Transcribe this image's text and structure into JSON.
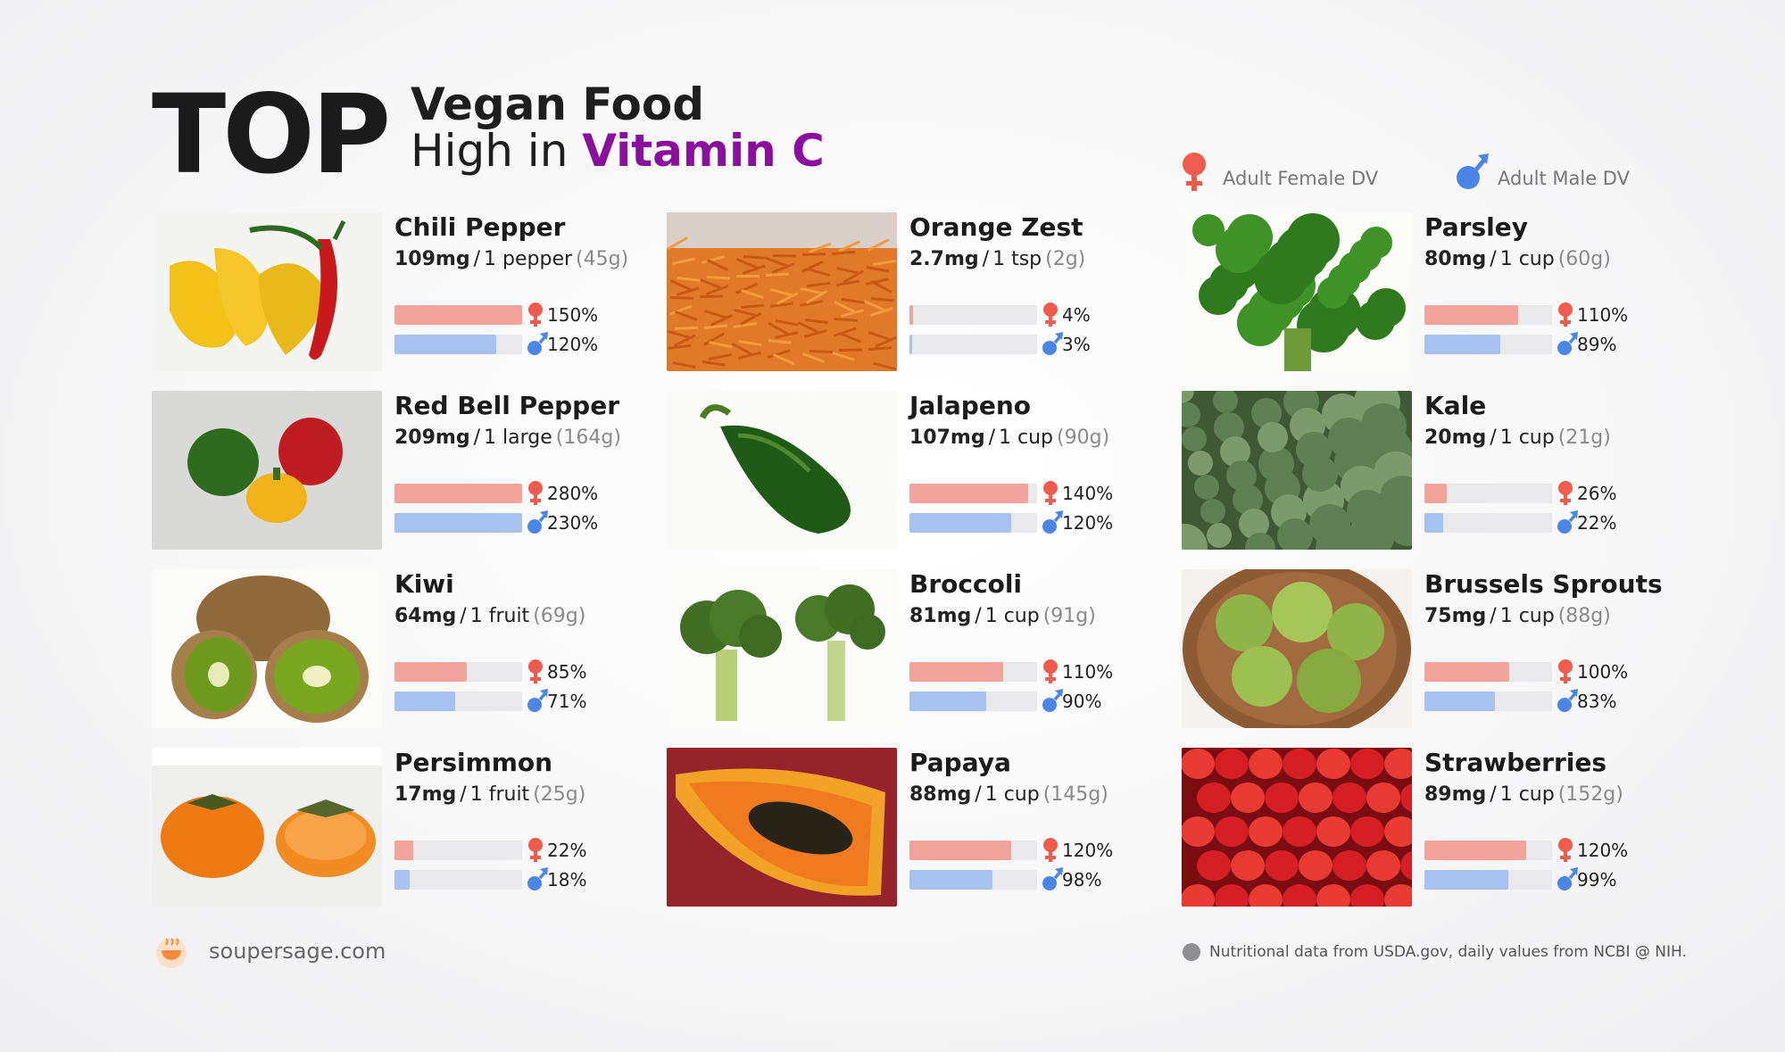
{
  "header": {
    "top_word": "TOP",
    "line1": "Vegan Food",
    "line2_prefix": "High in ",
    "line2_accent": "Vitamin C",
    "accent_color": "#8a0f9e"
  },
  "legend": {
    "female_label": "Adult Female DV",
    "male_label": "Adult Male DV",
    "female_icon": "female-symbol-icon",
    "male_icon": "male-symbol-icon"
  },
  "colors": {
    "female_bar": "#f2a39b",
    "male_bar": "#a7c1f0",
    "female_symbol": "#ef5b4c",
    "male_symbol": "#4b86e6",
    "track": "#e9e9ec"
  },
  "foods": [
    {
      "name": "Chili Pepper",
      "mg": "109mg",
      "serving": "1 pepper",
      "grams": "(45g)",
      "female_pct": 150,
      "male_pct": 120,
      "female_label": "150%",
      "male_label": "120%",
      "photo_icon": "chili-pepper-photo"
    },
    {
      "name": "Red Bell Pepper",
      "mg": "209mg",
      "serving": "1 large",
      "grams": "(164g)",
      "female_pct": 280,
      "male_pct": 230,
      "female_label": "280%",
      "male_label": "230%",
      "photo_icon": "bell-pepper-photo"
    },
    {
      "name": "Kiwi",
      "mg": "64mg",
      "serving": "1 fruit",
      "grams": "(69g)",
      "female_pct": 85,
      "male_pct": 71,
      "female_label": "85%",
      "male_label": "71%",
      "photo_icon": "kiwi-photo"
    },
    {
      "name": "Persimmon",
      "mg": "17mg",
      "serving": "1 fruit",
      "grams": "(25g)",
      "female_pct": 22,
      "male_pct": 18,
      "female_label": "22%",
      "male_label": "18%",
      "photo_icon": "persimmon-photo"
    },
    {
      "name": "Orange Zest",
      "mg": "2.7mg",
      "serving": "1 tsp",
      "grams": "(2g)",
      "female_pct": 4,
      "male_pct": 3,
      "female_label": "4%",
      "male_label": "3%",
      "photo_icon": "orange-zest-photo"
    },
    {
      "name": "Jalapeno",
      "mg": "107mg",
      "serving": "1 cup",
      "grams": "(90g)",
      "female_pct": 140,
      "male_pct": 120,
      "female_label": "140%",
      "male_label": "120%",
      "photo_icon": "jalapeno-photo"
    },
    {
      "name": "Broccoli",
      "mg": "81mg",
      "serving": "1 cup",
      "grams": "(91g)",
      "female_pct": 110,
      "male_pct": 90,
      "female_label": "110%",
      "male_label": "90%",
      "photo_icon": "broccoli-photo"
    },
    {
      "name": "Papaya",
      "mg": "88mg",
      "serving": "1 cup",
      "grams": "(145g)",
      "female_pct": 120,
      "male_pct": 98,
      "female_label": "120%",
      "male_label": "98%",
      "photo_icon": "papaya-photo"
    },
    {
      "name": "Parsley",
      "mg": "80mg",
      "serving": "1 cup",
      "grams": "(60g)",
      "female_pct": 110,
      "male_pct": 89,
      "female_label": "110%",
      "male_label": "89%",
      "photo_icon": "parsley-photo"
    },
    {
      "name": "Kale",
      "mg": "20mg",
      "serving": "1 cup",
      "grams": "(21g)",
      "female_pct": 26,
      "male_pct": 22,
      "female_label": "26%",
      "male_label": "22%",
      "photo_icon": "kale-photo"
    },
    {
      "name": "Brussels Sprouts",
      "mg": "75mg",
      "serving": "1 cup",
      "grams": "(88g)",
      "female_pct": 100,
      "male_pct": 83,
      "female_label": "100%",
      "male_label": "83%",
      "photo_icon": "brussels-sprouts-photo"
    },
    {
      "name": "Strawberries",
      "mg": "89mg",
      "serving": "1 cup",
      "grams": "(152g)",
      "female_pct": 120,
      "male_pct": 99,
      "female_label": "120%",
      "male_label": "99%",
      "photo_icon": "strawberries-photo"
    }
  ],
  "footer": {
    "site": "soupersage.com",
    "note": "Nutritional data from USDA.gov, daily values from NCBI @ NIH.",
    "logo_icon": "soupersage-logo-icon"
  }
}
